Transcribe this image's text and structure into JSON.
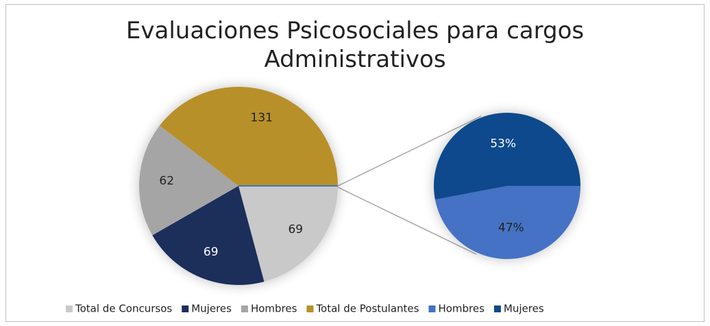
{
  "chart_data": {
    "type": "pie-of-pie",
    "title": "Evaluaciones Psicosociales para cargos Administrativos",
    "categories": [
      "Total de Concursos",
      "Mujeres",
      "Hombres",
      "Total de Postulantes"
    ],
    "values": [
      69,
      69,
      62,
      131
    ],
    "colors": [
      "#c9c9c9",
      "#1f2d5a",
      "#a5a5a5",
      "#b8902a"
    ],
    "label_colors": [
      "#222222",
      "#ffffff",
      "#222222",
      "#222222"
    ],
    "secondary": {
      "categories": [
        "Hombres",
        "Mujeres"
      ],
      "values": [
        47,
        53
      ],
      "value_labels": [
        "47%",
        "53%"
      ],
      "colors": [
        "#4472c4",
        "#0e4a8c"
      ],
      "label_colors": [
        "#222222",
        "#ffffff"
      ]
    },
    "legend": "bottom"
  }
}
